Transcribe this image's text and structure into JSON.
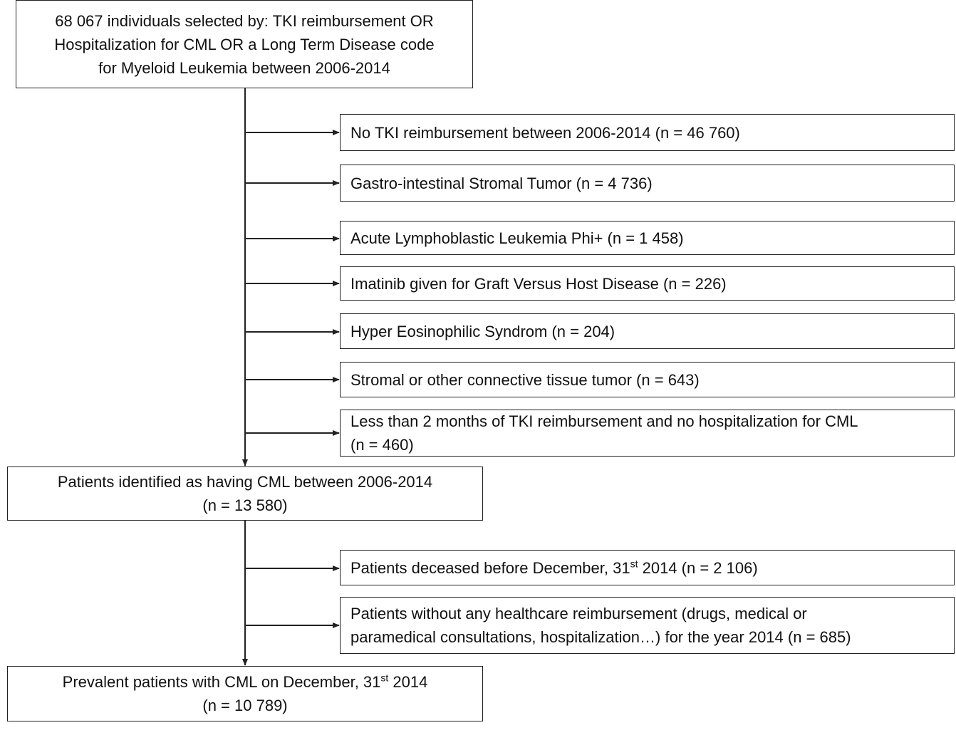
{
  "main_boxes": [
    {
      "lines": [
        "68 067 individuals selected by: TKI reimbursement OR",
        "Hospitalization for CML OR a Long Term Disease code",
        "for Myeloid Leukemia  between 2006-2014"
      ]
    },
    {
      "lines": [
        "Patients identified as having CML between 2006-2014",
        "(n = 13 580)"
      ]
    },
    {
      "lines": [
        {
          "before": "Prevalent patients with CML on December, 31",
          "superscript": "st",
          "after": " 2014"
        },
        "(n = 10 789)"
      ]
    }
  ],
  "exclusions": [
    {
      "lines": [
        "No TKI reimbursement between 2006-2014 (n = 46 760)"
      ]
    },
    {
      "lines": [
        "Gastro-intestinal Stromal Tumor (n = 4 736)"
      ]
    },
    {
      "lines": [
        "Acute Lymphoblastic Leukemia Phi+ (n = 1 458)"
      ]
    },
    {
      "lines": [
        "Imatinib given for Graft Versus Host Disease (n = 226)"
      ]
    },
    {
      "lines": [
        "Hyper Eosinophilic Syndrom (n = 204)"
      ]
    },
    {
      "lines": [
        "Stromal or other connective tissue tumor (n = 643)"
      ]
    },
    {
      "lines": [
        "Less than 2 months of TKI reimbursement and no hospitalization for CML",
        "(n = 460)"
      ]
    },
    {
      "lines": [
        {
          "before": "Patients deceased before December, 31",
          "superscript": "st",
          "after": " 2014 (n = 2 106)"
        }
      ]
    },
    {
      "lines": [
        "Patients without any healthcare reimbursement (drugs, medical or",
        "paramedical consultations, hospitalization…) for the year 2014 (n = 685)"
      ]
    }
  ]
}
